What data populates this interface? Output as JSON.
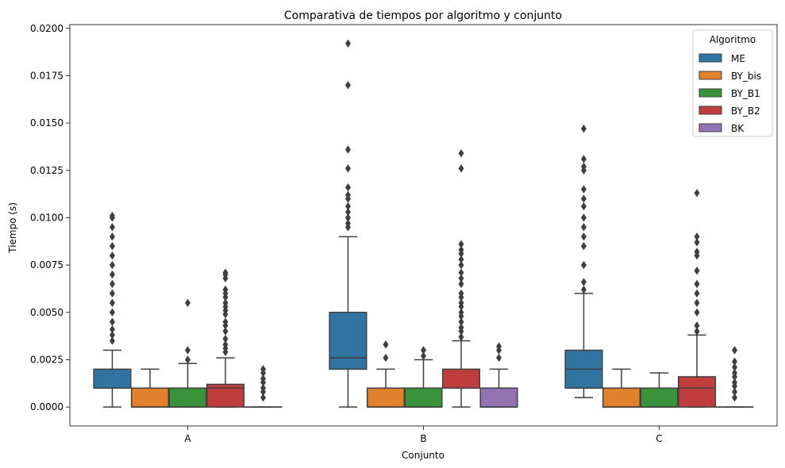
{
  "chart_data": {
    "type": "box",
    "title": "Comparativa de tiempos por algoritmo y conjunto",
    "xlabel": "Conjunto",
    "ylabel": "Tiempo (s)",
    "ylim": [
      -0.001,
      0.0202
    ],
    "yticks": [
      "0.0000",
      "0.0025",
      "0.0050",
      "0.0075",
      "0.0100",
      "0.0125",
      "0.0150",
      "0.0175",
      "0.0200"
    ],
    "yticks_values": [
      0,
      0.0025,
      0.005,
      0.0075,
      0.01,
      0.0125,
      0.015,
      0.0175,
      0.02
    ],
    "categories": [
      "A",
      "B",
      "C"
    ],
    "legend": {
      "title": "Algoritmo",
      "position": "upper right"
    },
    "series": [
      {
        "name": "ME",
        "color": "#3274a1",
        "boxes": [
          {
            "q1": 0.001,
            "median": 0.001,
            "q3": 0.002,
            "whislo": 0.0,
            "whishi": 0.003,
            "fliers": [
              0.0035,
              0.0038,
              0.0041,
              0.0045,
              0.005,
              0.0055,
              0.006,
              0.0065,
              0.007,
              0.0075,
              0.008,
              0.0085,
              0.009,
              0.0095,
              0.01,
              0.0101
            ]
          },
          {
            "q1": 0.002,
            "median": 0.0026,
            "q3": 0.005,
            "whislo": 0.0,
            "whishi": 0.009,
            "fliers": [
              0.0095,
              0.0097,
              0.01,
              0.0103,
              0.0106,
              0.011,
              0.0112,
              0.0116,
              0.0126,
              0.0136,
              0.017,
              0.0192
            ]
          },
          {
            "q1": 0.001,
            "median": 0.002,
            "q3": 0.003,
            "whislo": 0.0005,
            "whishi": 0.006,
            "fliers": [
              0.0062,
              0.0066,
              0.0075,
              0.0085,
              0.009,
              0.0095,
              0.01,
              0.0106,
              0.011,
              0.0115,
              0.0125,
              0.0127,
              0.0131,
              0.0147
            ]
          }
        ]
      },
      {
        "name": "BY_bis",
        "color": "#e1812c",
        "boxes": [
          {
            "q1": 0.0,
            "median": 0.0,
            "q3": 0.001,
            "whislo": 0.0,
            "whishi": 0.002,
            "fliers": []
          },
          {
            "q1": 0.0,
            "median": 0.0,
            "q3": 0.001,
            "whislo": 0.0,
            "whishi": 0.002,
            "fliers": [
              0.0026,
              0.0033
            ]
          },
          {
            "q1": 0.0,
            "median": 0.0,
            "q3": 0.001,
            "whislo": 0.0,
            "whishi": 0.002,
            "fliers": []
          }
        ]
      },
      {
        "name": "BY_B1",
        "color": "#3a923a",
        "boxes": [
          {
            "q1": 0.0,
            "median": 0.0,
            "q3": 0.001,
            "whislo": 0.0,
            "whishi": 0.0023,
            "fliers": [
              0.0025,
              0.003,
              0.0055
            ]
          },
          {
            "q1": 0.0,
            "median": 0.0,
            "q3": 0.001,
            "whislo": 0.0,
            "whishi": 0.0025,
            "fliers": [
              0.0027,
              0.003
            ]
          },
          {
            "q1": 0.0,
            "median": 0.0,
            "q3": 0.001,
            "whislo": 0.0,
            "whishi": 0.0018,
            "fliers": []
          }
        ]
      },
      {
        "name": "BY_B2",
        "color": "#c03d3e",
        "boxes": [
          {
            "q1": 0.0,
            "median": 0.001,
            "q3": 0.0012,
            "whislo": 0.0,
            "whishi": 0.0026,
            "fliers": [
              0.0029,
              0.0031,
              0.0033,
              0.0036,
              0.004,
              0.0043,
              0.0045,
              0.0049,
              0.0051,
              0.0053,
              0.0055,
              0.0058,
              0.006,
              0.0062,
              0.0068,
              0.007,
              0.0071
            ]
          },
          {
            "q1": 0.001,
            "median": 0.001,
            "q3": 0.002,
            "whislo": 0.0,
            "whishi": 0.0035,
            "fliers": [
              0.0037,
              0.004,
              0.0042,
              0.0045,
              0.0048,
              0.005,
              0.0053,
              0.0055,
              0.0058,
              0.006,
              0.0065,
              0.0068,
              0.0071,
              0.0075,
              0.0078,
              0.0081,
              0.0083,
              0.0086,
              0.0126,
              0.0134
            ]
          },
          {
            "q1": 0.0,
            "median": 0.001,
            "q3": 0.0016,
            "whislo": 0.0,
            "whishi": 0.0038,
            "fliers": [
              0.004,
              0.0043,
              0.005,
              0.0055,
              0.006,
              0.0065,
              0.0072,
              0.008,
              0.0082,
              0.0087,
              0.009,
              0.0113
            ]
          }
        ]
      },
      {
        "name": "BK",
        "color": "#9372b2",
        "boxes": [
          {
            "q1": 0.0,
            "median": 0.0,
            "q3": 0.0,
            "whislo": 0.0,
            "whishi": 0.0,
            "fliers": [
              0.0005,
              0.0008,
              0.001,
              0.0013,
              0.0015,
              0.0018,
              0.002
            ]
          },
          {
            "q1": 0.0,
            "median": 0.0,
            "q3": 0.001,
            "whislo": 0.0,
            "whishi": 0.002,
            "fliers": [
              0.0026,
              0.003,
              0.0032
            ]
          },
          {
            "q1": 0.0,
            "median": 0.0,
            "q3": 0.0,
            "whislo": 0.0,
            "whishi": 0.0,
            "fliers": [
              0.0005,
              0.0008,
              0.0011,
              0.0013,
              0.0016,
              0.0018,
              0.0021,
              0.0024,
              0.003
            ]
          }
        ]
      }
    ]
  }
}
